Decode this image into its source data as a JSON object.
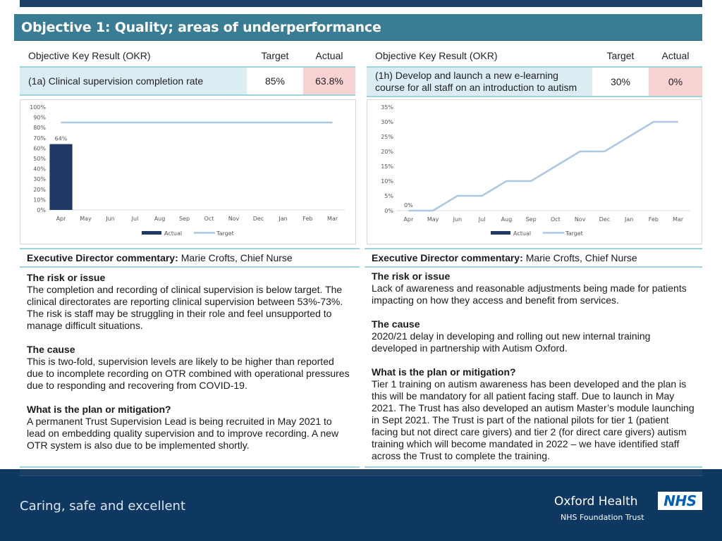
{
  "header": {
    "title": "Objective 1: Quality; areas of underperformance"
  },
  "left": {
    "table": {
      "col_okr": "Objective Key Result (OKR)",
      "col_target": "Target",
      "col_actual": "Actual",
      "row_name": "(1a) Clinical supervision completion rate",
      "row_target": "85%",
      "row_actual": "63.8%"
    },
    "commentary": {
      "label": "Executive Director commentary:",
      "person": "Marie Crofts, Chief Nurse",
      "risk_title": "The risk or issue",
      "risk_text": "The completion and recording of clinical supervision is below target. The clinical directorates are reporting clinical supervision between 53%-73%. The risk is staff may be struggling in their role and feel unsupported to manage difficult situations.",
      "cause_title": "The cause",
      "cause_text": "This is two-fold, supervision levels are likely to be higher than reported due to incomplete recording on OTR combined with operational pressures due to responding and recovering from COVID-19.",
      "plan_title": "What is the plan or mitigation?",
      "plan_text": "A permanent Trust Supervision Lead is being recruited in May 2021 to lead on embedding quality supervision and to improve recording. A new OTR system is also due to be implemented shortly."
    }
  },
  "right": {
    "table": {
      "col_okr": "Objective Key Result (OKR)",
      "col_target": "Target",
      "col_actual": "Actual",
      "row_name": "(1h) Develop and launch a new e-learning course for all staff on an introduction to autism",
      "row_target": "30%",
      "row_actual": "0%"
    },
    "commentary": {
      "label": "Executive Director commentary:",
      "person": "Marie Crofts, Chief Nurse",
      "risk_title": "The risk or issue",
      "risk_text": "Lack of awareness and reasonable adjustments being made for patients impacting on how they access and benefit from services.",
      "cause_title": "The cause",
      "cause_text": "2020/21 delay in developing and rolling out new internal training developed in partnership with Autism Oxford.",
      "plan_title": "What is the plan or mitigation?",
      "plan_text": "Tier 1 training on autism awareness has been developed and the plan is this will be mandatory for all patient facing staff. Due to launch in May 2021. The Trust has also developed an autism Master’s module launching in Sept 2021.  The Trust is part of the national pilots for tier 1 (patient facing but not direct care givers) and tier 2 (for direct care givers) autism training which will become mandated in 2022 – we have identified staff across the Trust to complete the training."
    }
  },
  "chart_data": [
    {
      "type": "bar",
      "categories": [
        "Apr",
        "May",
        "Jun",
        "Jul",
        "Aug",
        "Sep",
        "Oct",
        "Nov",
        "Dec",
        "Jan",
        "Feb",
        "Mar"
      ],
      "series": [
        {
          "name": "Actual",
          "values": [
            64,
            null,
            null,
            null,
            null,
            null,
            null,
            null,
            null,
            null,
            null,
            null
          ],
          "color": "#1f3864",
          "kind": "bar"
        },
        {
          "name": "Target",
          "values": [
            85,
            85,
            85,
            85,
            85,
            85,
            85,
            85,
            85,
            85,
            85,
            85
          ],
          "color": "#a9c8e3",
          "kind": "line"
        }
      ],
      "data_labels": [
        "64%"
      ],
      "y_ticks": [
        "0%",
        "10%",
        "20%",
        "30%",
        "40%",
        "50%",
        "60%",
        "70%",
        "80%",
        "90%",
        "100%"
      ],
      "ylim": [
        0,
        100
      ],
      "legend": "bottom",
      "grid": false
    },
    {
      "type": "line",
      "categories": [
        "Apr",
        "May",
        "Jun",
        "Jul",
        "Aug",
        "Sep",
        "Oct",
        "Nov",
        "Dec",
        "Jan",
        "Feb",
        "Mar"
      ],
      "series": [
        {
          "name": "Actual",
          "values": [
            0,
            null,
            null,
            null,
            null,
            null,
            null,
            null,
            null,
            null,
            null,
            null
          ],
          "color": "#1f3864",
          "kind": "bar"
        },
        {
          "name": "Target",
          "values": [
            0,
            0,
            5,
            5,
            10,
            10,
            15,
            20,
            20,
            25,
            30,
            30
          ],
          "color": "#a9c8e3",
          "kind": "line"
        }
      ],
      "data_labels": [
        "0%"
      ],
      "y_ticks": [
        "0%",
        "5%",
        "10%",
        "15%",
        "20%",
        "25%",
        "30%",
        "35%"
      ],
      "ylim": [
        0,
        35
      ],
      "legend": "bottom",
      "grid": false
    }
  ],
  "footer": {
    "slogan": "Caring, safe and excellent",
    "org_name": "Oxford Health",
    "org_sub": "NHS Foundation Trust",
    "nhs_logo": "NHS"
  }
}
